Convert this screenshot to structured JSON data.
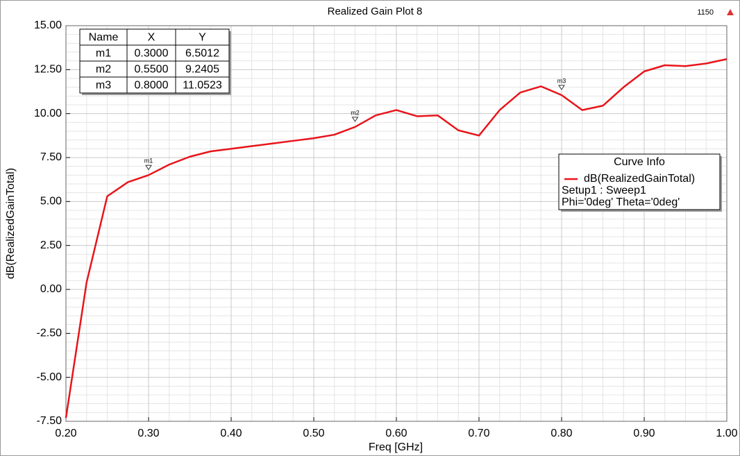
{
  "chart_data": {
    "type": "line",
    "title": "Realized Gain Plot 8",
    "corner_label": "1150",
    "xlabel": "Freq [GHz]",
    "ylabel": "dB(RealizedGainTotal)",
    "x": [
      0.2,
      0.225,
      0.25,
      0.275,
      0.3,
      0.325,
      0.35,
      0.375,
      0.4,
      0.425,
      0.45,
      0.475,
      0.5,
      0.525,
      0.55,
      0.575,
      0.6,
      0.625,
      0.65,
      0.675,
      0.7,
      0.725,
      0.75,
      0.775,
      0.8,
      0.825,
      0.85,
      0.875,
      0.9,
      0.925,
      0.95,
      0.975,
      1.0
    ],
    "series": [
      {
        "name": "dB(RealizedGainTotal)",
        "color": "#e8141a",
        "values": [
          -7.3,
          0.4,
          5.3,
          6.1,
          6.5012,
          7.1,
          7.55,
          7.85,
          8.0,
          8.15,
          8.3,
          8.45,
          8.6,
          8.8,
          9.2405,
          9.9,
          10.2,
          9.85,
          9.9,
          9.05,
          8.75,
          10.2,
          11.2,
          11.55,
          11.0523,
          10.2,
          10.45,
          11.5,
          12.4,
          12.75,
          12.7,
          12.85,
          13.1
        ]
      }
    ],
    "xlim": [
      0.2,
      1.0
    ],
    "ylim": [
      -7.5,
      15.0
    ],
    "xticks": [
      {
        "value": 0.2,
        "label": "0.20"
      },
      {
        "value": 0.3,
        "label": "0.30"
      },
      {
        "value": 0.4,
        "label": "0.40"
      },
      {
        "value": 0.5,
        "label": "0.50"
      },
      {
        "value": 0.6,
        "label": "0.60"
      },
      {
        "value": 0.7,
        "label": "0.70"
      },
      {
        "value": 0.8,
        "label": "0.80"
      },
      {
        "value": 0.9,
        "label": "0.90"
      },
      {
        "value": 1.0,
        "label": "1.00"
      }
    ],
    "yticks": [
      {
        "value": -7.5,
        "label": "-7.50"
      },
      {
        "value": -5,
        "label": "-5.00"
      },
      {
        "value": -2.5,
        "label": "-2.50"
      },
      {
        "value": 0,
        "label": "0.00"
      },
      {
        "value": 2.5,
        "label": "2.50"
      },
      {
        "value": 5,
        "label": "5.00"
      },
      {
        "value": 7.5,
        "label": "7.50"
      },
      {
        "value": 10,
        "label": "10.00"
      },
      {
        "value": 12.5,
        "label": "12.50"
      },
      {
        "value": 15,
        "label": "15.00"
      }
    ],
    "grid": true,
    "markers": [
      {
        "name": "m1",
        "index": 4
      },
      {
        "name": "m2",
        "index": 14
      },
      {
        "name": "m3",
        "index": 24
      }
    ],
    "marker_table": {
      "header": [
        "Name",
        "X",
        "Y"
      ],
      "rows": [
        [
          "m1",
          "0.3000",
          "6.5012"
        ],
        [
          "m2",
          "0.5500",
          "9.2405"
        ],
        [
          "m3",
          "0.8000",
          "11.0523"
        ]
      ]
    },
    "legend_title": "Curve Info",
    "legend_lines": [
      "Setup1 : Sweep1",
      "Phi='0deg' Theta='0deg'"
    ]
  }
}
